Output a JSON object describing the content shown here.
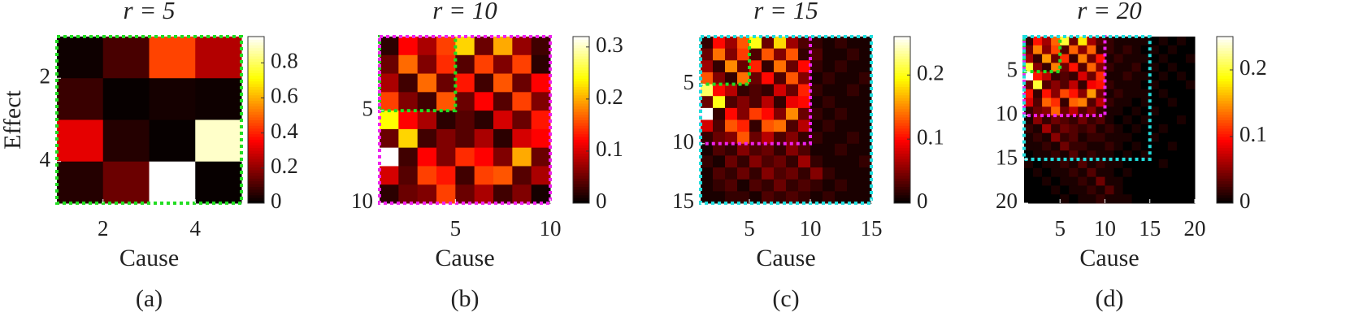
{
  "chart_data": [
    {
      "type": "heatmap",
      "title": "r = 5",
      "xlabel": "Cause",
      "ylabel": "Effect",
      "caption": "(a)",
      "xlim": [
        1,
        5
      ],
      "ylim": [
        1,
        5
      ],
      "xticks": [
        2,
        4
      ],
      "yticks": [
        2,
        4
      ],
      "colormap": "hot",
      "clim": [
        0,
        0.95
      ],
      "cticks": [
        0,
        0.2,
        0.4,
        0.6,
        0.8
      ],
      "boxes": [
        {
          "color": "#22dd22",
          "extent": 5
        }
      ],
      "z": [
        [
          0.02,
          0.1,
          0.45,
          0.25
        ],
        [
          0.08,
          0.01,
          0.03,
          0.02
        ],
        [
          0.32,
          0.05,
          0.01,
          0.9
        ],
        [
          0.05,
          0.15,
          0.95,
          0.01
        ]
      ]
    },
    {
      "type": "heatmap",
      "title": "r = 10",
      "xlabel": "Cause",
      "caption": "(b)",
      "xlim": [
        1,
        10
      ],
      "ylim": [
        1,
        10
      ],
      "xticks": [
        5,
        10
      ],
      "yticks": [
        5,
        10
      ],
      "colormap": "hot",
      "clim": [
        0,
        0.32
      ],
      "cticks": [
        0,
        0.1,
        0.2,
        0.3
      ],
      "boxes": [
        {
          "color": "#22dd22",
          "extent": 5
        },
        {
          "color": "#ee22ee",
          "extent": 10
        }
      ],
      "z": [
        [
          0.02,
          0.12,
          0.08,
          0.15,
          0.22,
          0.05,
          0.2,
          0.07,
          0.03
        ],
        [
          0.05,
          0.17,
          0.06,
          0.14,
          0.04,
          0.15,
          0.06,
          0.15,
          0.02
        ],
        [
          0.08,
          0.03,
          0.17,
          0.05,
          0.13,
          0.03,
          0.16,
          0.05,
          0.12
        ],
        [
          0.15,
          0.06,
          0.03,
          0.16,
          0.05,
          0.12,
          0.04,
          0.15,
          0.06
        ],
        [
          0.24,
          0.12,
          0.08,
          0.02,
          0.04,
          0.02,
          0.1,
          0.05,
          0.13
        ],
        [
          0.05,
          0.22,
          0.03,
          0.06,
          0.04,
          0.08,
          0.02,
          0.1,
          0.12
        ],
        [
          0.32,
          0.03,
          0.12,
          0.06,
          0.14,
          0.12,
          0.06,
          0.2,
          0.05
        ],
        [
          0.1,
          0.04,
          0.15,
          0.13,
          0.03,
          0.15,
          0.16,
          0.04,
          0.08
        ],
        [
          0.02,
          0.05,
          0.06,
          0.15,
          0.05,
          0.08,
          0.03,
          0.06,
          0.01
        ]
      ]
    },
    {
      "type": "heatmap",
      "title": "r = 15",
      "xlabel": "Cause",
      "caption": "(c)",
      "xlim": [
        1,
        15
      ],
      "ylim": [
        1,
        15
      ],
      "xticks": [
        5,
        10,
        15
      ],
      "yticks": [
        5,
        10,
        15
      ],
      "colormap": "hot",
      "clim": [
        0,
        0.26
      ],
      "cticks": [
        0,
        0.1,
        0.2
      ],
      "boxes": [
        {
          "color": "#22dd22",
          "extent": 5
        },
        {
          "color": "#ee22ee",
          "extent": 10
        },
        {
          "color": "#22dddd",
          "extent": 15
        }
      ],
      "z": [
        [
          0.02,
          0.1,
          0.06,
          0.13,
          0.2,
          0.04,
          0.18,
          0.06,
          0.03,
          0.02,
          0.01,
          0.02,
          0.01,
          0.01
        ],
        [
          0.04,
          0.14,
          0.05,
          0.12,
          0.03,
          0.13,
          0.05,
          0.13,
          0.02,
          0.03,
          0.01,
          0.01,
          0.02,
          0.01
        ],
        [
          0.06,
          0.02,
          0.15,
          0.04,
          0.11,
          0.02,
          0.14,
          0.04,
          0.1,
          0.02,
          0.01,
          0.02,
          0.01,
          0.01
        ],
        [
          0.13,
          0.05,
          0.02,
          0.14,
          0.04,
          0.1,
          0.03,
          0.13,
          0.05,
          0.01,
          0.02,
          0.01,
          0.01,
          0.02
        ],
        [
          0.22,
          0.1,
          0.07,
          0.02,
          0.03,
          0.02,
          0.08,
          0.04,
          0.11,
          0.02,
          0.01,
          0.01,
          0.02,
          0.01
        ],
        [
          0.04,
          0.2,
          0.03,
          0.05,
          0.03,
          0.07,
          0.02,
          0.09,
          0.1,
          0.01,
          0.02,
          0.01,
          0.01,
          0.01
        ],
        [
          0.26,
          0.02,
          0.1,
          0.05,
          0.12,
          0.1,
          0.05,
          0.15,
          0.04,
          0.02,
          0.01,
          0.02,
          0.01,
          0.01
        ],
        [
          0.08,
          0.03,
          0.13,
          0.11,
          0.02,
          0.13,
          0.14,
          0.03,
          0.07,
          0.01,
          0.02,
          0.01,
          0.01,
          0.01
        ],
        [
          0.02,
          0.04,
          0.05,
          0.13,
          0.04,
          0.07,
          0.03,
          0.05,
          0.02,
          0.02,
          0.01,
          0.01,
          0.02,
          0.01
        ],
        [
          0.01,
          0.03,
          0.02,
          0.05,
          0.03,
          0.04,
          0.02,
          0.05,
          0.03,
          0.01,
          0.01,
          0.02,
          0.01,
          0.01
        ],
        [
          0.02,
          0.01,
          0.04,
          0.02,
          0.05,
          0.03,
          0.04,
          0.02,
          0.06,
          0.02,
          0.01,
          0.01,
          0.01,
          0.02
        ],
        [
          0.01,
          0.03,
          0.02,
          0.04,
          0.02,
          0.05,
          0.03,
          0.04,
          0.02,
          0.05,
          0.02,
          0.01,
          0.01,
          0.01
        ],
        [
          0.01,
          0.02,
          0.03,
          0.01,
          0.03,
          0.02,
          0.04,
          0.02,
          0.03,
          0.02,
          0.01,
          0.02,
          0.01,
          0.01
        ],
        [
          0.01,
          0.01,
          0.02,
          0.02,
          0.01,
          0.03,
          0.02,
          0.03,
          0.02,
          0.01,
          0.02,
          0.01,
          0.01,
          0.01
        ]
      ]
    },
    {
      "type": "heatmap",
      "title": "r = 20",
      "xlabel": "Cause",
      "caption": "(d)",
      "xlim": [
        1,
        20
      ],
      "ylim": [
        1,
        20
      ],
      "xticks": [
        5,
        10,
        15,
        20
      ],
      "yticks": [
        5,
        10,
        15,
        20
      ],
      "colormap": "hot",
      "clim": [
        0,
        0.25
      ],
      "cticks": [
        0,
        0.1,
        0.2
      ],
      "boxes": [
        {
          "color": "#22dd22",
          "extent": 5
        },
        {
          "color": "#ee22ee",
          "extent": 10
        },
        {
          "color": "#22dddd",
          "extent": 15
        }
      ],
      "z": [
        [
          0.02,
          0.1,
          0.06,
          0.13,
          0.2,
          0.04,
          0.18,
          0.06,
          0.03,
          0.02,
          0.01,
          0.01,
          0.01,
          0.01,
          0,
          0.01,
          0,
          0.01,
          0
        ],
        [
          0.04,
          0.14,
          0.05,
          0.12,
          0.03,
          0.13,
          0.05,
          0.13,
          0.02,
          0.02,
          0.01,
          0.02,
          0.01,
          0,
          0.01,
          0,
          0.01,
          0,
          0
        ],
        [
          0.06,
          0.02,
          0.15,
          0.04,
          0.11,
          0.02,
          0.14,
          0.04,
          0.1,
          0.01,
          0.02,
          0.01,
          0.01,
          0.01,
          0,
          0.01,
          0,
          0,
          0.01
        ],
        [
          0.2,
          0.05,
          0.02,
          0.14,
          0.04,
          0.1,
          0.03,
          0.13,
          0.05,
          0.02,
          0.01,
          0.01,
          0.02,
          0,
          0.01,
          0,
          0.01,
          0,
          0
        ],
        [
          0.25,
          0.1,
          0.07,
          0.02,
          0.03,
          0.02,
          0.08,
          0.04,
          0.11,
          0.01,
          0.01,
          0.02,
          0.01,
          0.01,
          0,
          0.01,
          0,
          0.01,
          0
        ],
        [
          0.04,
          0.2,
          0.03,
          0.05,
          0.03,
          0.07,
          0.02,
          0.09,
          0.1,
          0.02,
          0.01,
          0.01,
          0.01,
          0,
          0.01,
          0,
          0,
          0,
          0.01
        ],
        [
          0.1,
          0.02,
          0.1,
          0.05,
          0.12,
          0.1,
          0.05,
          0.15,
          0.04,
          0.01,
          0.02,
          0.01,
          0.01,
          0.01,
          0,
          0.01,
          0,
          0,
          0
        ],
        [
          0.08,
          0.03,
          0.13,
          0.11,
          0.02,
          0.13,
          0.14,
          0.03,
          0.07,
          0.02,
          0.01,
          0.01,
          0,
          0.01,
          0,
          0,
          0.01,
          0,
          0
        ],
        [
          0.02,
          0.04,
          0.05,
          0.13,
          0.04,
          0.07,
          0.03,
          0.05,
          0.02,
          0.01,
          0.01,
          0,
          0.01,
          0,
          0.01,
          0,
          0,
          0,
          0
        ],
        [
          0.01,
          0.05,
          0.02,
          0.04,
          0.03,
          0.02,
          0.04,
          0.02,
          0.03,
          0.01,
          0,
          0.01,
          0,
          0.01,
          0,
          0,
          0,
          0.01,
          0
        ],
        [
          0.02,
          0.01,
          0.06,
          0.02,
          0.04,
          0.03,
          0.02,
          0.03,
          0.01,
          0.02,
          0.01,
          0,
          0.01,
          0,
          0,
          0.01,
          0,
          0,
          0
        ],
        [
          0.01,
          0.02,
          0.01,
          0.05,
          0.02,
          0.03,
          0.01,
          0.02,
          0.02,
          0.01,
          0.01,
          0.01,
          0,
          0,
          0.01,
          0,
          0,
          0,
          0
        ],
        [
          0.01,
          0.01,
          0.02,
          0.01,
          0.04,
          0.02,
          0.02,
          0.01,
          0.01,
          0.02,
          0.01,
          0,
          0.01,
          0,
          0,
          0,
          0.01,
          0,
          0
        ],
        [
          0,
          0.01,
          0.01,
          0.02,
          0.01,
          0.03,
          0.01,
          0.02,
          0.01,
          0.01,
          0,
          0.01,
          0,
          0.01,
          0,
          0,
          0,
          0,
          0
        ],
        [
          0.01,
          0,
          0.01,
          0.01,
          0.02,
          0.01,
          0.03,
          0.01,
          0.02,
          0.01,
          0.01,
          0,
          0,
          0,
          0,
          0.01,
          0,
          0,
          0
        ],
        [
          0,
          0.01,
          0,
          0.01,
          0.01,
          0.02,
          0.01,
          0.03,
          0.01,
          0.01,
          0,
          0.01,
          0,
          0,
          0,
          0,
          0,
          0,
          0
        ],
        [
          0,
          0,
          0.01,
          0,
          0.01,
          0.01,
          0.02,
          0.01,
          0.04,
          0.01,
          0.01,
          0,
          0,
          0,
          0,
          0,
          0,
          0,
          0
        ],
        [
          0,
          0,
          0,
          0.01,
          0,
          0.01,
          0.01,
          0.02,
          0.01,
          0.03,
          0.01,
          0,
          0,
          0,
          0,
          0,
          0,
          0,
          0
        ],
        [
          0,
          0,
          0,
          0,
          0.01,
          0,
          0.01,
          0.01,
          0.02,
          0.01,
          0.01,
          0.01,
          0,
          0,
          0,
          0,
          0,
          0,
          0
        ]
      ]
    }
  ]
}
